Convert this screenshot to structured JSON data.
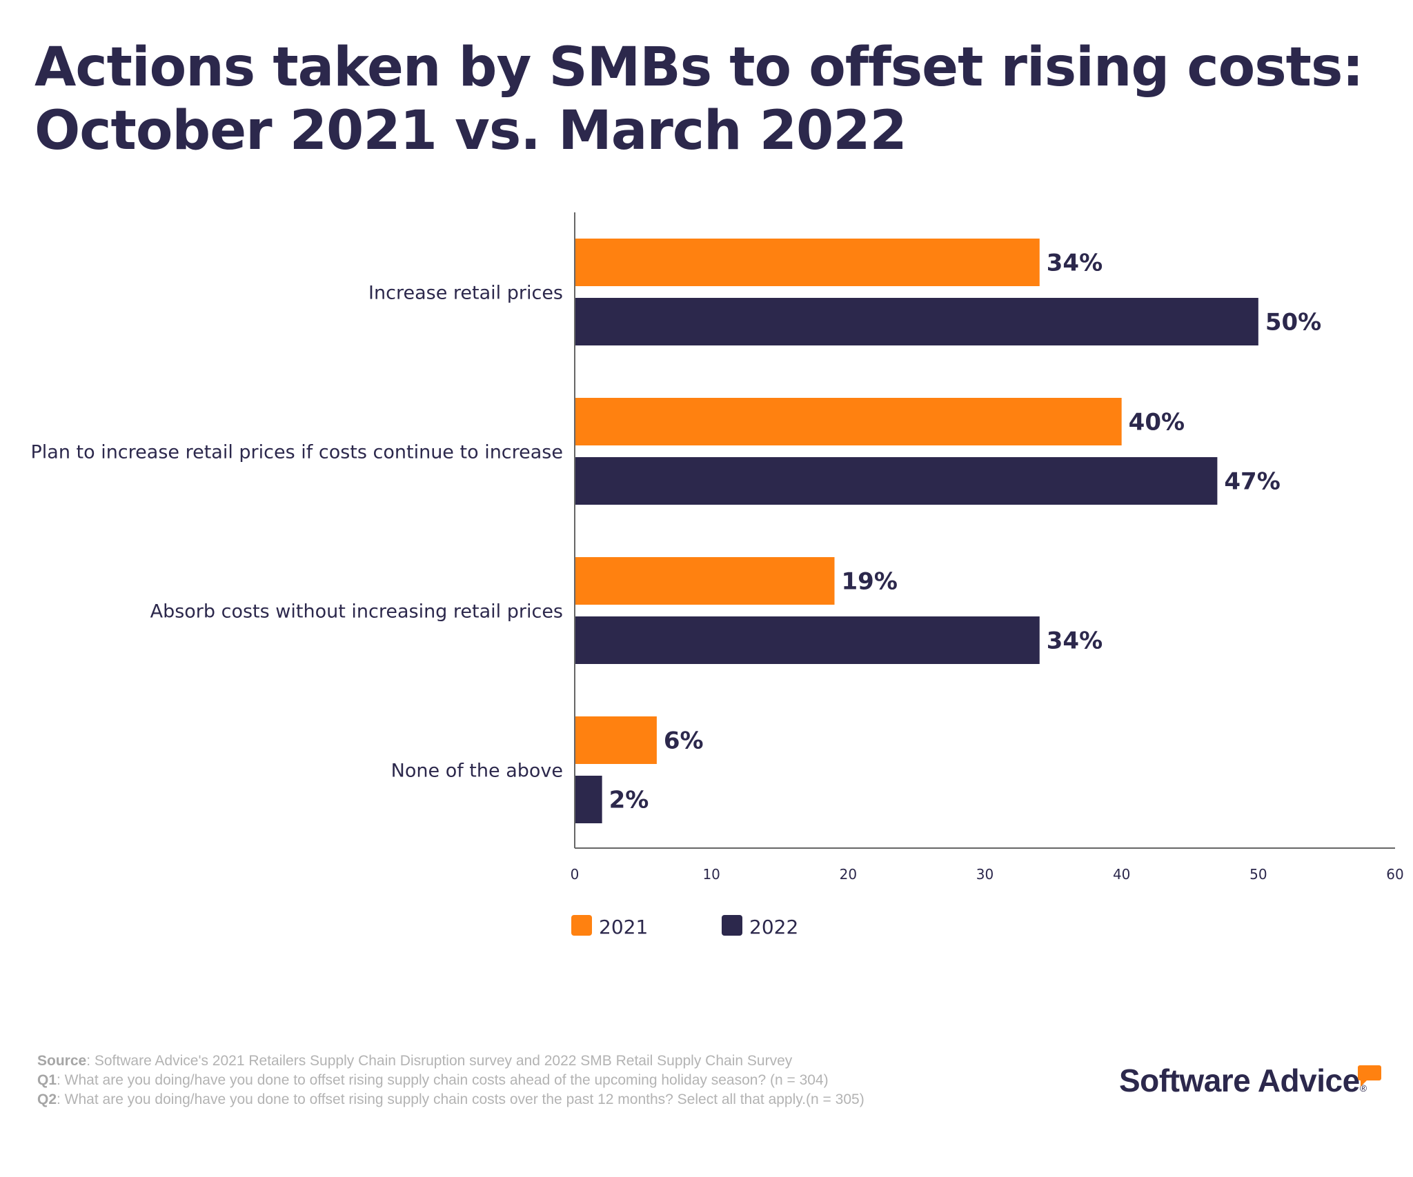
{
  "title_line1": "Actions taken by SMBs to offset rising costs:",
  "title_line2": "October 2021 vs. March 2022",
  "chart_data": {
    "type": "bar",
    "orientation": "horizontal",
    "categories": [
      "Increase retail prices",
      "Plan to increase retail prices if costs continue to increase",
      "Absorb costs without increasing retail prices",
      "None of the above"
    ],
    "series": [
      {
        "name": "2021",
        "color": "#ff8110",
        "values": [
          34,
          40,
          19,
          6
        ]
      },
      {
        "name": "2022",
        "color": "#2c284c",
        "values": [
          50,
          47,
          34,
          2
        ]
      }
    ],
    "data_labels": [
      [
        "34%",
        "40%",
        "19%",
        "6%"
      ],
      [
        "50%",
        "47%",
        "34%",
        "2%"
      ]
    ],
    "xlim": [
      0,
      60
    ],
    "xticks": [
      "0",
      "10",
      "20",
      "30",
      "40",
      "50",
      "60"
    ],
    "grid": false,
    "legend": "bottom"
  },
  "footer": {
    "source_label": "Source",
    "source_text": ": Software Advice's 2021 Retailers Supply Chain Disruption survey and 2022 SMB Retail Supply Chain Survey",
    "q1_label": "Q1",
    "q1_text": ": What are you doing/have you done to offset rising supply chain costs ahead of the upcoming holiday season? (n = 304)",
    "q2_label": "Q2",
    "q2_text": ": What are you doing/have you done to offset rising supply chain costs over the past 12 months? Select all that apply.(n = 305)"
  },
  "logo": {
    "text": "Software Advice",
    "registered": "®"
  }
}
